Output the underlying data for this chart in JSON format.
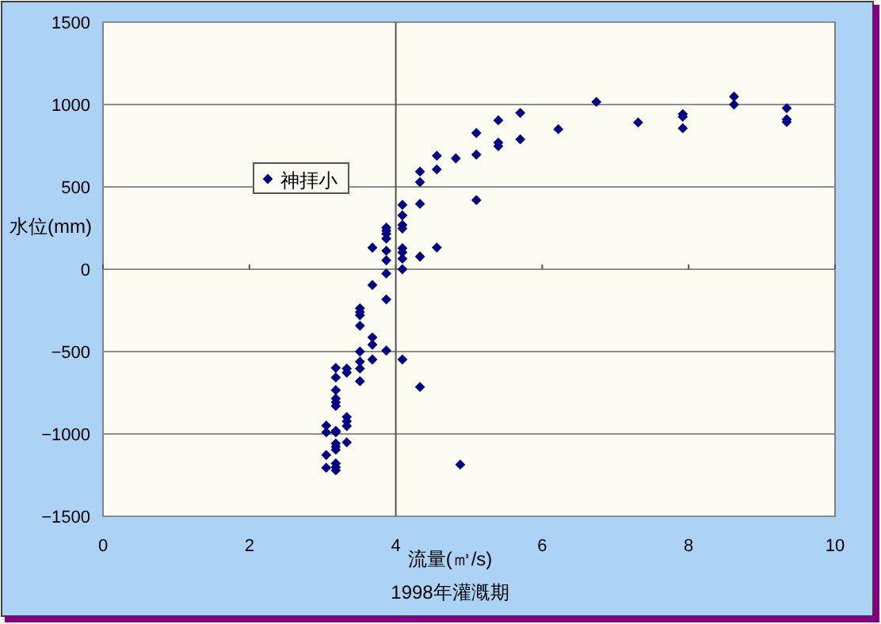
{
  "chart_data": {
    "type": "scatter",
    "xlabel": "流量(㎥/s)",
    "ylabel": "水位(mm)",
    "annotations": [
      "1998年灌漑期"
    ],
    "xlim": [
      0,
      10
    ],
    "xticks": [
      0,
      2,
      4,
      6,
      8,
      10
    ],
    "ylim": [
      -1500,
      1500
    ],
    "yticks": [
      -1500,
      -1000,
      -500,
      0,
      500,
      1000,
      1500
    ],
    "grid": "y",
    "legend": "top left",
    "marker": "diamond",
    "ref_lines": [
      {
        "axis": "x",
        "value": 4,
        "color": "#555555"
      }
    ],
    "series": [
      {
        "name": "神拝小",
        "color": "#000080",
        "x": [
          4.33,
          4.33,
          4.33,
          4.09,
          4.09,
          4.09,
          4.09,
          3.87,
          3.87,
          3.87,
          3.87,
          3.68,
          3.87,
          3.87,
          4.09,
          4.09,
          4.09,
          4.09,
          4.33,
          3.68,
          3.87,
          3.87,
          3.51,
          3.51,
          3.51,
          3.51,
          3.68,
          3.68,
          3.51,
          3.51,
          3.51,
          3.51,
          3.68,
          3.87,
          4.09,
          4.33,
          3.18,
          3.18,
          3.18,
          3.18,
          3.18,
          3.18,
          3.33,
          3.33,
          3.33,
          3.33,
          3.33,
          3.33,
          3.05,
          3.05,
          3.18,
          3.18,
          3.18,
          3.18,
          3.18,
          3.05,
          3.05,
          3.18,
          3.18,
          3.18,
          4.88,
          4.56,
          4.56,
          4.82,
          5.1,
          5.1,
          5.4,
          5.4,
          5.4,
          5.7,
          5.7,
          6.22,
          6.74,
          7.31,
          7.92,
          7.92,
          7.92,
          8.62,
          8.62,
          9.34,
          9.34,
          9.34,
          5.1,
          4.56
        ],
        "values": [
          593,
          529,
          397,
          391,
          327,
          269,
          247,
          253,
          234,
          215,
          186,
          131,
          112,
          54,
          128,
          102,
          64,
          0,
          77,
          -96,
          -26,
          -183,
          -237,
          -260,
          -279,
          -343,
          -414,
          -458,
          -500,
          -561,
          -603,
          -680,
          -548,
          -494,
          -548,
          -715,
          -599,
          -657,
          -734,
          -785,
          -808,
          -830,
          -603,
          -628,
          -897,
          -923,
          -952,
          -1051,
          -949,
          -990,
          -981,
          -990,
          -1058,
          -1077,
          -1096,
          -1128,
          -1205,
          -1179,
          -1202,
          -1221,
          -1186,
          689,
          606,
          673,
          696,
          827,
          904,
          769,
          747,
          949,
          789,
          850,
          1016,
          891,
          942,
          926,
          856,
          1048,
          1000,
          978,
          910,
          894,
          420,
          132
        ]
      }
    ]
  }
}
